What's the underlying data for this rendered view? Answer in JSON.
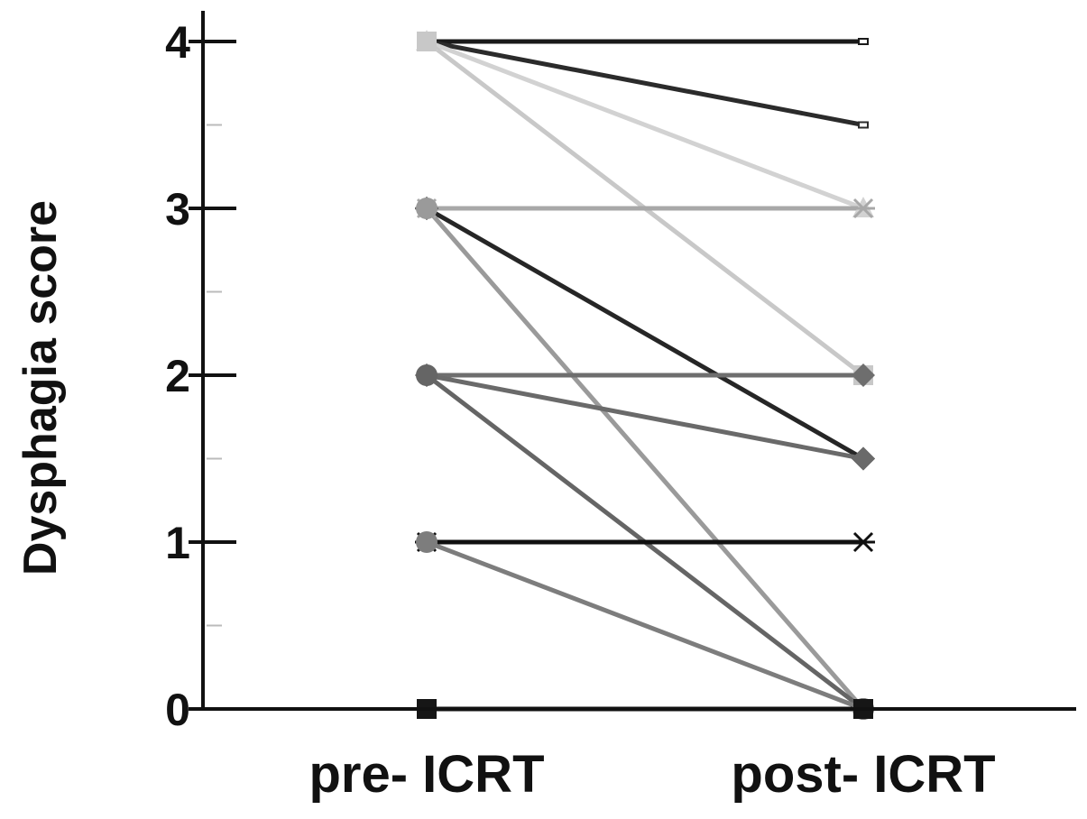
{
  "chart_data": {
    "type": "line",
    "title": "",
    "xlabel": "",
    "ylabel": "Dysphagia score",
    "categories": [
      "pre- ICRT",
      "post- ICRT"
    ],
    "ylim": [
      0,
      4
    ],
    "yticks": [
      "0",
      "1",
      "2",
      "3",
      "4"
    ],
    "grid": false,
    "legend": "none",
    "series": [
      {
        "values": [
          4,
          4
        ],
        "color": "#1a1a1a",
        "marker": "square-open"
      },
      {
        "values": [
          4,
          3.5
        ],
        "color": "#2b2b2b",
        "marker": "square-open"
      },
      {
        "values": [
          4,
          3
        ],
        "color": "#d2d2d2",
        "marker": "triangle"
      },
      {
        "values": [
          4,
          2
        ],
        "color": "#c8c8c8",
        "marker": "square"
      },
      {
        "values": [
          3,
          3
        ],
        "color": "#a8a8a8",
        "marker": "star"
      },
      {
        "values": [
          3,
          1.5
        ],
        "color": "#262626",
        "marker": "diamond"
      },
      {
        "values": [
          3,
          0
        ],
        "color": "#9a9a9a",
        "marker": "circle"
      },
      {
        "values": [
          2,
          2
        ],
        "color": "#6e6e6e",
        "marker": "diamond"
      },
      {
        "values": [
          2,
          1.5
        ],
        "color": "#6a6a6a",
        "marker": "diamond"
      },
      {
        "values": [
          2,
          0
        ],
        "color": "#656565",
        "marker": "circle"
      },
      {
        "values": [
          1,
          1
        ],
        "color": "#101010",
        "marker": "star"
      },
      {
        "values": [
          1,
          0
        ],
        "color": "#7d7d7d",
        "marker": "circle"
      },
      {
        "values": [
          0,
          0
        ],
        "color": "#161616",
        "marker": "square"
      }
    ]
  }
}
